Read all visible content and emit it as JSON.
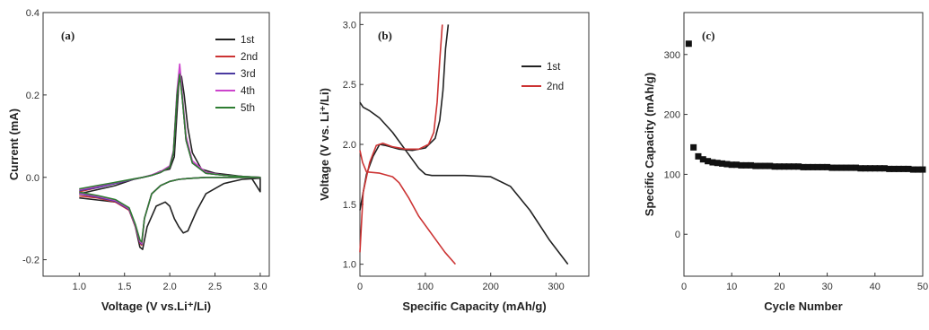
{
  "chart_data": [
    {
      "type": "line",
      "panel_label": "(a)",
      "xlabel": "Voltage (V vs.Li⁺/Li)",
      "ylabel": "Current (mA)",
      "xlim": [
        0.6,
        3.1
      ],
      "ylim": [
        -0.24,
        0.4
      ],
      "xticks": [
        "1.0",
        "1.5",
        "2.0",
        "2.5",
        "3.0"
      ],
      "yticks": [
        "-0.2",
        "0.0",
        "0.2",
        "0.4"
      ],
      "legend_position": "top-right",
      "series": [
        {
          "name": "1st",
          "color": "#222222",
          "x": [
            1.0,
            1.2,
            1.4,
            1.55,
            1.62,
            1.67,
            1.7,
            1.75,
            1.85,
            1.95,
            2.0,
            2.05,
            2.1,
            2.15,
            2.2,
            2.3,
            2.4,
            2.6,
            2.8,
            3.0,
            3.0,
            2.9,
            2.7,
            2.5,
            2.35,
            2.25,
            2.2,
            2.16,
            2.13,
            2.1,
            2.05,
            2.0,
            1.9,
            1.8,
            1.7,
            1.6,
            1.4,
            1.2,
            1.0
          ],
          "y": [
            -0.05,
            -0.055,
            -0.06,
            -0.075,
            -0.12,
            -0.17,
            -0.175,
            -0.12,
            -0.07,
            -0.06,
            -0.07,
            -0.1,
            -0.12,
            -0.135,
            -0.13,
            -0.08,
            -0.04,
            -0.015,
            -0.005,
            -0.002,
            -0.035,
            0.0,
            0.005,
            0.01,
            0.02,
            0.06,
            0.12,
            0.2,
            0.245,
            0.23,
            0.05,
            0.02,
            0.015,
            0.005,
            0.0,
            -0.005,
            -0.02,
            -0.03,
            -0.04
          ]
        },
        {
          "name": "2nd",
          "color": "#cc3333",
          "x": [
            1.0,
            1.2,
            1.4,
            1.55,
            1.62,
            1.67,
            1.69,
            1.72,
            1.8,
            1.9,
            2.0,
            2.1,
            2.2,
            2.4,
            2.6,
            2.8,
            3.0,
            3.0,
            2.8,
            2.6,
            2.4,
            2.25,
            2.18,
            2.14,
            2.11,
            2.08,
            2.04,
            2.0,
            1.9,
            1.8,
            1.7,
            1.6,
            1.4,
            1.2,
            1.0
          ],
          "y": [
            -0.045,
            -0.05,
            -0.06,
            -0.08,
            -0.12,
            -0.16,
            -0.165,
            -0.1,
            -0.04,
            -0.02,
            -0.01,
            -0.005,
            -0.003,
            0.0,
            0.0,
            0.0,
            0.0,
            0.0,
            0.002,
            0.005,
            0.01,
            0.035,
            0.09,
            0.19,
            0.255,
            0.2,
            0.06,
            0.025,
            0.012,
            0.005,
            0.0,
            -0.005,
            -0.015,
            -0.025,
            -0.035
          ]
        },
        {
          "name": "3rd",
          "color": "#4a3aa0",
          "x": [
            1.0,
            1.2,
            1.4,
            1.55,
            1.62,
            1.67,
            1.69,
            1.72,
            1.8,
            1.9,
            2.0,
            2.1,
            2.2,
            2.4,
            2.6,
            2.8,
            3.0,
            3.0,
            2.8,
            2.6,
            2.4,
            2.25,
            2.18,
            2.14,
            2.11,
            2.08,
            2.04,
            2.0,
            1.9,
            1.8,
            1.7,
            1.6,
            1.4,
            1.2,
            1.0
          ],
          "y": [
            -0.04,
            -0.048,
            -0.058,
            -0.078,
            -0.118,
            -0.158,
            -0.162,
            -0.1,
            -0.04,
            -0.02,
            -0.01,
            -0.005,
            -0.003,
            0.0,
            0.0,
            0.0,
            0.0,
            0.0,
            0.002,
            0.005,
            0.01,
            0.035,
            0.09,
            0.19,
            0.265,
            0.2,
            0.06,
            0.025,
            0.012,
            0.005,
            0.0,
            -0.005,
            -0.015,
            -0.025,
            -0.032
          ]
        },
        {
          "name": "4th",
          "color": "#cc44cc",
          "x": [
            1.0,
            1.2,
            1.4,
            1.55,
            1.62,
            1.67,
            1.69,
            1.72,
            1.8,
            1.9,
            2.0,
            2.1,
            2.2,
            2.4,
            2.6,
            2.8,
            3.0,
            3.0,
            2.8,
            2.6,
            2.4,
            2.25,
            2.18,
            2.14,
            2.11,
            2.08,
            2.04,
            2.0,
            1.9,
            1.8,
            1.7,
            1.6,
            1.4,
            1.2,
            1.0
          ],
          "y": [
            -0.038,
            -0.046,
            -0.056,
            -0.076,
            -0.116,
            -0.155,
            -0.16,
            -0.1,
            -0.04,
            -0.02,
            -0.01,
            -0.005,
            -0.003,
            0.0,
            0.0,
            0.0,
            0.0,
            0.0,
            0.002,
            0.005,
            0.012,
            0.04,
            0.1,
            0.2,
            0.275,
            0.21,
            0.065,
            0.028,
            0.014,
            0.006,
            0.0,
            -0.004,
            -0.013,
            -0.022,
            -0.03
          ]
        },
        {
          "name": "5th",
          "color": "#2e7d32",
          "x": [
            1.0,
            1.2,
            1.4,
            1.55,
            1.62,
            1.67,
            1.69,
            1.72,
            1.8,
            1.9,
            2.0,
            2.1,
            2.2,
            2.4,
            2.6,
            2.8,
            3.0,
            3.0,
            2.8,
            2.6,
            2.4,
            2.25,
            2.18,
            2.14,
            2.11,
            2.08,
            2.04,
            2.0,
            1.9,
            1.8,
            1.7,
            1.6,
            1.4,
            1.2,
            1.0
          ],
          "y": [
            -0.036,
            -0.044,
            -0.054,
            -0.074,
            -0.114,
            -0.152,
            -0.157,
            -0.1,
            -0.04,
            -0.02,
            -0.01,
            -0.005,
            -0.003,
            0.0,
            0.0,
            0.0,
            0.0,
            0.0,
            0.002,
            0.005,
            0.01,
            0.035,
            0.09,
            0.19,
            0.25,
            0.2,
            0.06,
            0.025,
            0.012,
            0.005,
            0.0,
            -0.004,
            -0.012,
            -0.02,
            -0.028
          ]
        }
      ]
    },
    {
      "type": "line",
      "panel_label": "(b)",
      "xlabel": "Specific Capacity (mAh/g)",
      "ylabel": "Voltage (V vs. Li⁺/Li)",
      "xlim": [
        0,
        350
      ],
      "ylim": [
        0.9,
        3.1
      ],
      "xticks": [
        "0",
        "100",
        "200",
        "300"
      ],
      "xtick_values": [
        0,
        100,
        200,
        300
      ],
      "yticks": [
        "1.0",
        "1.5",
        "2.0",
        "2.5",
        "3.0"
      ],
      "legend_position": "top-right",
      "series": [
        {
          "name": "1st",
          "color": "#222222",
          "segments": [
            {
              "x": [
                0,
                5,
                15,
                30,
                50,
                70,
                90,
                100,
                110,
                130,
                160,
                200,
                230,
                260,
                290,
                318
              ],
              "y": [
                2.35,
                2.31,
                2.28,
                2.22,
                2.1,
                1.95,
                1.8,
                1.75,
                1.74,
                1.74,
                1.74,
                1.73,
                1.65,
                1.45,
                1.2,
                1.0
              ]
            },
            {
              "x": [
                0,
                10,
                20,
                30,
                40,
                60,
                80,
                100,
                115,
                122,
                127,
                131,
                135
              ],
              "y": [
                1.45,
                1.75,
                1.9,
                2.0,
                1.99,
                1.96,
                1.95,
                1.97,
                2.05,
                2.2,
                2.45,
                2.8,
                3.0
              ]
            }
          ]
        },
        {
          "name": "2nd",
          "color": "#cc3333",
          "segments": [
            {
              "x": [
                0,
                4,
                10,
                30,
                50,
                60,
                75,
                90,
                110,
                130,
                146
              ],
              "y": [
                1.95,
                1.85,
                1.77,
                1.76,
                1.73,
                1.68,
                1.55,
                1.4,
                1.25,
                1.1,
                1.0
              ]
            },
            {
              "x": [
                0,
                5,
                15,
                25,
                35,
                50,
                70,
                90,
                105,
                113,
                118,
                122,
                126
              ],
              "y": [
                1.1,
                1.6,
                1.85,
                1.99,
                2.01,
                1.98,
                1.96,
                1.96,
                2.0,
                2.1,
                2.35,
                2.7,
                3.0
              ]
            }
          ]
        }
      ]
    },
    {
      "type": "scatter",
      "panel_label": "(c)",
      "xlabel": "Cycle Number",
      "ylabel": "Specific Capacity (mAh/g)",
      "xlim": [
        0,
        50
      ],
      "ylim": [
        -70,
        370
      ],
      "xticks": [
        "0",
        "10",
        "20",
        "30",
        "40",
        "50"
      ],
      "yticks": [
        "0",
        "100",
        "200",
        "300"
      ],
      "ytick_values": [
        0,
        100,
        200,
        300
      ],
      "color": "#111111",
      "x": [
        1,
        2,
        3,
        4,
        5,
        6,
        7,
        8,
        9,
        10,
        11,
        12,
        13,
        14,
        15,
        16,
        17,
        18,
        19,
        20,
        21,
        22,
        23,
        24,
        25,
        26,
        27,
        28,
        29,
        30,
        31,
        32,
        33,
        34,
        35,
        36,
        37,
        38,
        39,
        40,
        41,
        42,
        43,
        44,
        45,
        46,
        47,
        48,
        49,
        50
      ],
      "y": [
        318,
        145,
        130,
        125,
        122,
        120,
        119,
        118,
        117,
        116,
        116,
        115,
        115,
        115,
        114,
        114,
        114,
        114,
        113,
        113,
        113,
        113,
        113,
        113,
        112,
        112,
        112,
        112,
        112,
        112,
        111,
        111,
        111,
        111,
        111,
        111,
        110,
        110,
        110,
        110,
        110,
        110,
        109,
        109,
        109,
        109,
        109,
        108,
        108,
        108
      ]
    }
  ]
}
